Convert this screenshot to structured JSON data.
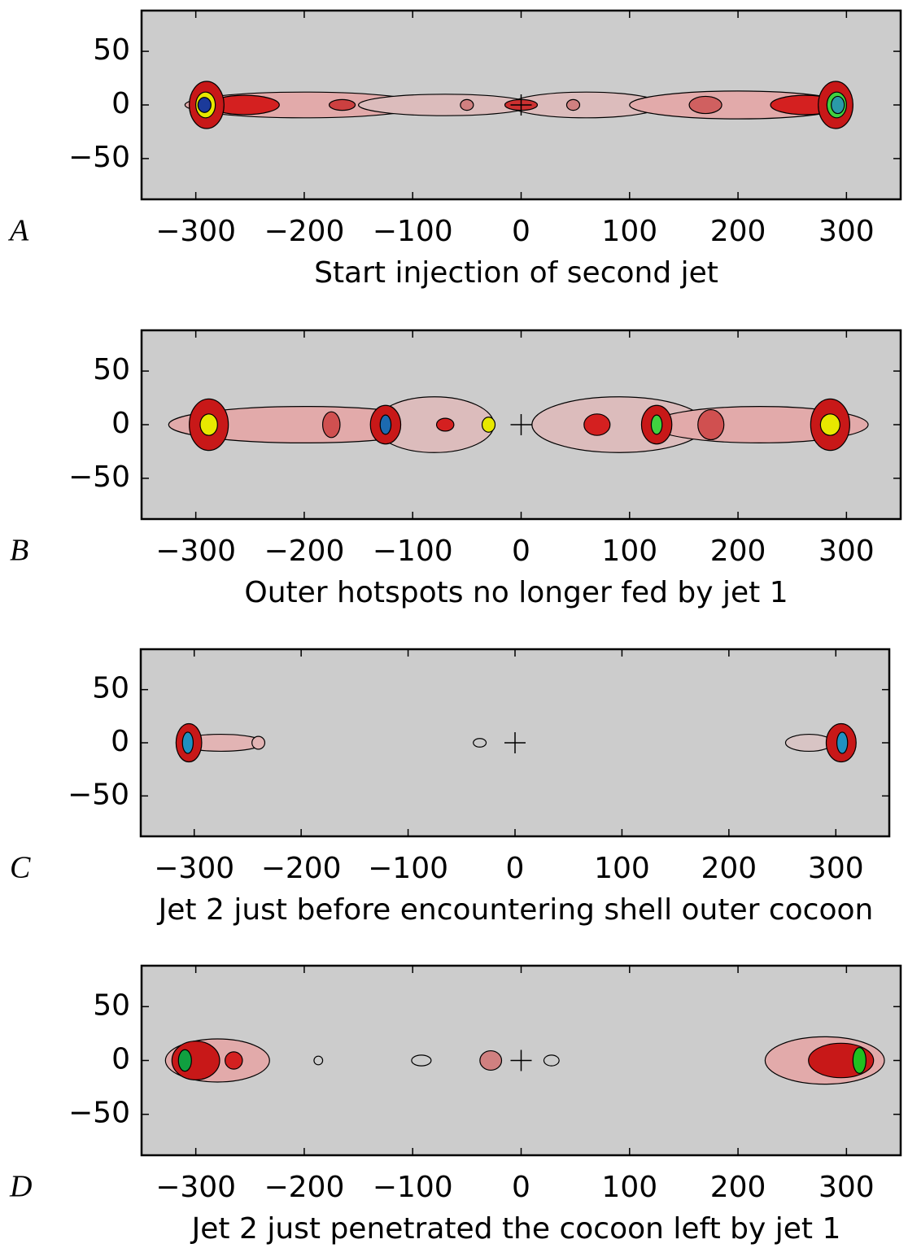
{
  "chart_data": [
    {
      "type": "image",
      "panel": "A",
      "xlabel": "Start injection of second jet",
      "background": "#cccccc",
      "xlim": [
        -350,
        350
      ],
      "ylim": [
        -88,
        88
      ],
      "xticks": [
        {
          "value": -300,
          "label": "−300"
        },
        {
          "value": -200,
          "label": "−200"
        },
        {
          "value": -100,
          "label": "−100"
        },
        0,
        100,
        200,
        300
      ],
      "yticks": [
        {
          "value": -50,
          "label": "−50"
        },
        0,
        50
      ],
      "sources": [
        {
          "x": -200,
          "y": 0,
          "rx": 110,
          "ry": 12,
          "fill": "#e2aaaa"
        },
        {
          "x": -70,
          "y": 0,
          "rx": 80,
          "ry": 10,
          "fill": "#dcbcbc"
        },
        {
          "x": 60,
          "y": 0,
          "rx": 70,
          "ry": 12,
          "fill": "#dcbcbc"
        },
        {
          "x": 200,
          "y": 0,
          "rx": 100,
          "ry": 13,
          "fill": "#e2aaaa"
        },
        {
          "x": -255,
          "y": 0,
          "rx": 32,
          "ry": 9,
          "fill": "#d42020"
        },
        {
          "x": -290,
          "y": 0,
          "rx": 16,
          "ry": 22,
          "fill": "#c81818"
        },
        {
          "x": -291,
          "y": 0,
          "rx": 9,
          "ry": 12,
          "fill": "#e8e800"
        },
        {
          "x": -292,
          "y": 0,
          "rx": 6,
          "ry": 7,
          "fill": "#1b3a9a"
        },
        {
          "x": 262,
          "y": 0,
          "rx": 32,
          "ry": 9,
          "fill": "#d42020"
        },
        {
          "x": 290,
          "y": 0,
          "rx": 16,
          "ry": 22,
          "fill": "#c81818"
        },
        {
          "x": 291,
          "y": 0,
          "rx": 9,
          "ry": 12,
          "fill": "#40d040"
        },
        {
          "x": 292,
          "y": 0,
          "rx": 6,
          "ry": 8,
          "fill": "#2a9aa8"
        },
        {
          "x": 0,
          "y": 0,
          "rx": 15,
          "ry": 5,
          "fill": "#cc3030"
        },
        {
          "x": -165,
          "y": 0,
          "rx": 12,
          "ry": 5,
          "fill": "#cc4040"
        },
        {
          "x": 170,
          "y": 0,
          "rx": 15,
          "ry": 8,
          "fill": "#d06060"
        },
        {
          "x": -50,
          "y": 0,
          "rx": 6,
          "ry": 5,
          "fill": "#d08080"
        },
        {
          "x": 48,
          "y": 0,
          "rx": 6,
          "ry": 5,
          "fill": "#d08080"
        }
      ]
    },
    {
      "type": "image",
      "panel": "B",
      "xlabel": "Outer hotspots no longer fed by jet 1",
      "background": "#cccccc",
      "xlim": [
        -350,
        350
      ],
      "ylim": [
        -88,
        88
      ],
      "xticks": [
        {
          "value": -300,
          "label": "−300"
        },
        {
          "value": -200,
          "label": "−200"
        },
        {
          "value": -100,
          "label": "−100"
        },
        0,
        100,
        200,
        300
      ],
      "yticks": [
        {
          "value": -50,
          "label": "−50"
        },
        0,
        50
      ],
      "sources": [
        {
          "x": -200,
          "y": 0,
          "rx": 125,
          "ry": 17,
          "fill": "#e2aaaa"
        },
        {
          "x": -80,
          "y": 0,
          "rx": 55,
          "ry": 26,
          "fill": "#dcbcbc"
        },
        {
          "x": 90,
          "y": 0,
          "rx": 80,
          "ry": 26,
          "fill": "#dcbcbc"
        },
        {
          "x": 220,
          "y": 0,
          "rx": 100,
          "ry": 17,
          "fill": "#e2aaaa"
        },
        {
          "x": -288,
          "y": 0,
          "rx": 18,
          "ry": 24,
          "fill": "#c81818"
        },
        {
          "x": -288,
          "y": 0,
          "rx": 8,
          "ry": 10,
          "fill": "#e8e800"
        },
        {
          "x": -125,
          "y": 0,
          "rx": 14,
          "ry": 18,
          "fill": "#c81818"
        },
        {
          "x": -125,
          "y": 0,
          "rx": 5,
          "ry": 9,
          "fill": "#1c6ab0"
        },
        {
          "x": -30,
          "y": 0,
          "rx": 6,
          "ry": 7,
          "fill": "#e8e800"
        },
        {
          "x": 70,
          "y": 0,
          "rx": 12,
          "ry": 10,
          "fill": "#d42020"
        },
        {
          "x": 125,
          "y": 0,
          "rx": 14,
          "ry": 18,
          "fill": "#c81818"
        },
        {
          "x": 125,
          "y": 0,
          "rx": 5,
          "ry": 9,
          "fill": "#40d040"
        },
        {
          "x": 285,
          "y": 0,
          "rx": 18,
          "ry": 24,
          "fill": "#c81818"
        },
        {
          "x": 285,
          "y": 0,
          "rx": 9,
          "ry": 10,
          "fill": "#e8e800"
        },
        {
          "x": -70,
          "y": 0,
          "rx": 8,
          "ry": 6,
          "fill": "#d42020"
        },
        {
          "x": -175,
          "y": 0,
          "rx": 8,
          "ry": 12,
          "fill": "#d05050"
        },
        {
          "x": 175,
          "y": 0,
          "rx": 12,
          "ry": 14,
          "fill": "#d05050"
        }
      ]
    },
    {
      "type": "image",
      "panel": "C",
      "xlabel": "Jet 2 just before encountering shell outer cocoon",
      "background": "#cccccc",
      "xlim": [
        -350,
        350
      ],
      "ylim": [
        -88,
        88
      ],
      "xticks": [
        {
          "value": -300,
          "label": "−300"
        },
        {
          "value": -200,
          "label": "−200"
        },
        {
          "value": -100,
          "label": "−100"
        },
        0,
        100,
        200,
        300
      ],
      "yticks": [
        {
          "value": -50,
          "label": "−50"
        },
        0,
        50
      ],
      "sources": [
        {
          "x": -275,
          "y": 0,
          "rx": 40,
          "ry": 8,
          "fill": "#e2b4b4"
        },
        {
          "x": -305,
          "y": 0,
          "rx": 12,
          "ry": 18,
          "fill": "#c81818"
        },
        {
          "x": -306,
          "y": 0,
          "rx": 5,
          "ry": 10,
          "fill": "#2090c0"
        },
        {
          "x": -240,
          "y": 0,
          "rx": 6,
          "ry": 6,
          "fill": "#e2b4b4"
        },
        {
          "x": -33,
          "y": 0,
          "rx": 6,
          "ry": 4,
          "fill": "#cccccc"
        },
        {
          "x": 275,
          "y": 0,
          "rx": 22,
          "ry": 8,
          "fill": "#d8c4c4"
        },
        {
          "x": 305,
          "y": 0,
          "rx": 14,
          "ry": 18,
          "fill": "#c81818"
        },
        {
          "x": 306,
          "y": 0,
          "rx": 5,
          "ry": 10,
          "fill": "#2090c0"
        }
      ]
    },
    {
      "type": "image",
      "panel": "D",
      "xlabel": "Jet 2 just penetrated the cocoon left by jet 1",
      "background": "#cccccc",
      "xlim": [
        -350,
        350
      ],
      "ylim": [
        -88,
        88
      ],
      "xticks": [
        {
          "value": -300,
          "label": "−300"
        },
        {
          "value": -200,
          "label": "−200"
        },
        {
          "value": -100,
          "label": "−100"
        },
        0,
        100,
        200,
        300
      ],
      "yticks": [
        {
          "value": -50,
          "label": "−50"
        },
        0,
        50
      ],
      "sources": [
        {
          "x": -280,
          "y": 0,
          "rx": 48,
          "ry": 20,
          "fill": "#e2aaaa"
        },
        {
          "x": -300,
          "y": 0,
          "rx": 22,
          "ry": 18,
          "fill": "#c81818"
        },
        {
          "x": -310,
          "y": 0,
          "rx": 6,
          "ry": 10,
          "fill": "#10a040"
        },
        {
          "x": -265,
          "y": 0,
          "rx": 8,
          "ry": 8,
          "fill": "#d42020"
        },
        {
          "x": -187,
          "y": 0,
          "rx": 4,
          "ry": 4,
          "fill": "#cccccc"
        },
        {
          "x": -92,
          "y": 0,
          "rx": 9,
          "ry": 5,
          "fill": "#cccccc"
        },
        {
          "x": -28,
          "y": 0,
          "rx": 10,
          "ry": 9,
          "fill": "#d08080"
        },
        {
          "x": 28,
          "y": 0,
          "rx": 7,
          "ry": 5,
          "fill": "#cccccc"
        },
        {
          "x": 280,
          "y": 0,
          "rx": 55,
          "ry": 22,
          "fill": "#e2aaaa"
        },
        {
          "x": 295,
          "y": 0,
          "rx": 30,
          "ry": 16,
          "fill": "#c81818"
        },
        {
          "x": 312,
          "y": 0,
          "rx": 6,
          "ry": 12,
          "fill": "#20c020"
        }
      ]
    }
  ]
}
